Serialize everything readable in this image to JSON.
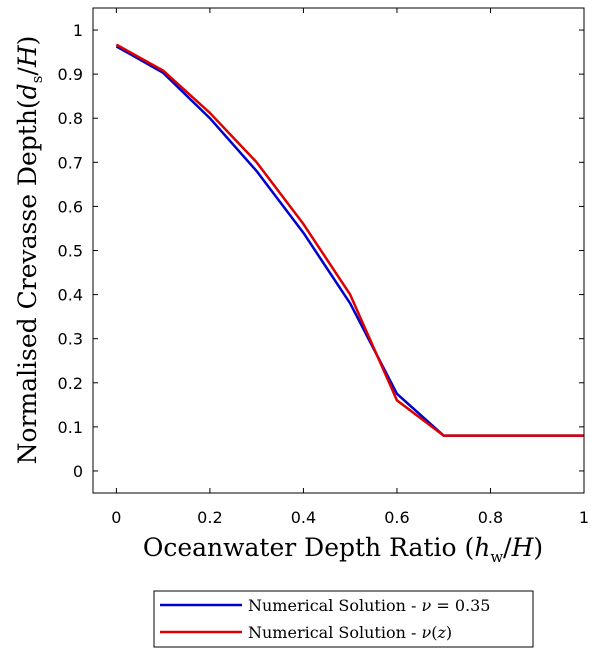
{
  "chart_data": {
    "type": "line",
    "xlabel": "Oceanwater Depth Ratio (h_w/H)",
    "ylabel": "Normalised Crevasse Depth(d_s/H)",
    "xlim": [
      -0.05,
      1.0
    ],
    "ylim": [
      -0.05,
      1.05
    ],
    "xticks": [
      "0",
      "0.2",
      "0.4",
      "0.6",
      "0.8",
      "1"
    ],
    "yticks": [
      "0",
      "0.1",
      "0.2",
      "0.3",
      "0.4",
      "0.5",
      "0.6",
      "0.7",
      "0.8",
      "0.9",
      "1"
    ],
    "grid": false,
    "legend_position": "bottom-outside",
    "x": [
      0,
      0.1,
      0.2,
      0.3,
      0.4,
      0.5,
      0.6,
      0.7,
      0.8,
      0.9,
      1.0
    ],
    "series": [
      {
        "name": "Numerical Solution - ν = 0.35",
        "color": "#0000cc",
        "values": [
          0.963,
          0.903,
          0.8,
          0.68,
          0.54,
          0.38,
          0.175,
          0.08,
          0.08,
          0.08,
          0.08
        ]
      },
      {
        "name": "Numerical Solution - ν(z)",
        "color": "#dd0000",
        "values": [
          0.967,
          0.908,
          0.812,
          0.7,
          0.56,
          0.4,
          0.16,
          0.08,
          0.08,
          0.08,
          0.08
        ]
      }
    ]
  }
}
